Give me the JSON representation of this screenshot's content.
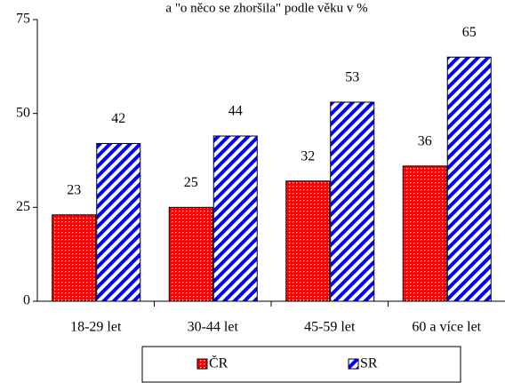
{
  "chart_data": {
    "type": "bar",
    "title": "a \"o něco se zhoršila\" podle věku v %",
    "categories": [
      "18-29 let",
      "30-44 let",
      "45-59 let",
      "60 a více let"
    ],
    "series": [
      {
        "name": "ČR",
        "color": "#ff0000",
        "values": [
          23,
          25,
          32,
          36
        ]
      },
      {
        "name": "SR",
        "color": "#0000ff",
        "values": [
          42,
          44,
          53,
          65
        ]
      }
    ],
    "ylim": [
      0,
      75
    ],
    "yticks": [
      0,
      25,
      50,
      75
    ],
    "grid": false,
    "legend": "bottom"
  }
}
